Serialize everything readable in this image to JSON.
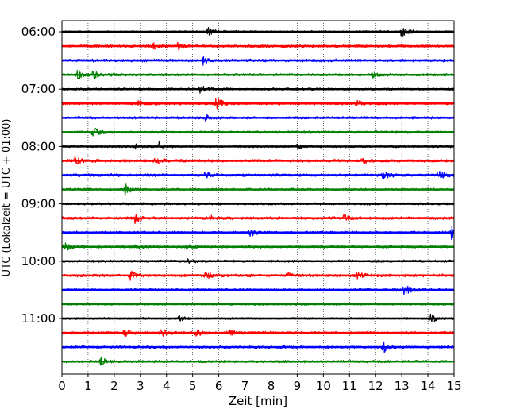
{
  "chart_data": {
    "type": "line",
    "title": "",
    "xlabel": "Zeit  [min]",
    "ylabel": "UTC (Lokalzeit = UTC + 01:00)",
    "xlim": [
      0,
      15
    ],
    "x_ticks": [
      "0",
      "1",
      "2",
      "3",
      "4",
      "5",
      "6",
      "7",
      "8",
      "9",
      "10",
      "11",
      "12",
      "13",
      "14",
      "15"
    ],
    "y_tick_labels": [
      "06:00",
      "07:00",
      "08:00",
      "09:00",
      "10:00",
      "11:00"
    ],
    "y_tick_rows": [
      0,
      4,
      8,
      12,
      16,
      20
    ],
    "grid": "vertical dotted",
    "row_minutes": 15,
    "color_cycle": [
      "#000000",
      "#ff0000",
      "#0000ff",
      "#008000"
    ],
    "series": [
      {
        "name": "06:00",
        "color": "#000000",
        "noise": 0.1,
        "events": [
          [
            5.6,
            0.5
          ],
          [
            13.0,
            0.6
          ]
        ]
      },
      {
        "name": "06:15",
        "color": "#ff0000",
        "noise": 0.12,
        "events": [
          [
            3.5,
            0.3
          ],
          [
            4.4,
            0.45
          ]
        ]
      },
      {
        "name": "06:30",
        "color": "#0000ff",
        "noise": 0.12,
        "events": [
          [
            5.4,
            0.35
          ]
        ]
      },
      {
        "name": "06:45",
        "color": "#008000",
        "noise": 0.11,
        "events": [
          [
            0.6,
            0.55
          ],
          [
            1.2,
            0.5
          ],
          [
            11.9,
            0.35
          ]
        ]
      },
      {
        "name": "07:00",
        "color": "#000000",
        "noise": 0.1,
        "events": [
          [
            5.3,
            0.45
          ]
        ]
      },
      {
        "name": "07:15",
        "color": "#ff0000",
        "noise": 0.12,
        "events": [
          [
            2.9,
            0.35
          ],
          [
            5.9,
            0.65
          ],
          [
            11.3,
            0.3
          ]
        ]
      },
      {
        "name": "07:30",
        "color": "#0000ff",
        "noise": 0.11,
        "events": [
          [
            5.5,
            0.35
          ]
        ]
      },
      {
        "name": "07:45",
        "color": "#008000",
        "noise": 0.11,
        "events": [
          [
            1.2,
            0.55
          ]
        ]
      },
      {
        "name": "08:00",
        "color": "#000000",
        "noise": 0.1,
        "events": [
          [
            2.8,
            0.25
          ],
          [
            3.7,
            0.45
          ],
          [
            9.0,
            0.25
          ]
        ]
      },
      {
        "name": "08:15",
        "color": "#ff0000",
        "noise": 0.12,
        "events": [
          [
            0.5,
            0.45
          ],
          [
            3.6,
            0.4
          ],
          [
            11.5,
            0.2
          ]
        ]
      },
      {
        "name": "08:30",
        "color": "#0000ff",
        "noise": 0.12,
        "events": [
          [
            5.5,
            0.35
          ],
          [
            12.3,
            0.55
          ],
          [
            14.4,
            0.45
          ]
        ]
      },
      {
        "name": "08:45",
        "color": "#008000",
        "noise": 0.11,
        "events": [
          [
            2.4,
            0.65
          ]
        ]
      },
      {
        "name": "09:00",
        "color": "#000000",
        "noise": 0.1,
        "events": [
          [
            15.0,
            0.35
          ]
        ]
      },
      {
        "name": "09:15",
        "color": "#ff0000",
        "noise": 0.12,
        "events": [
          [
            2.8,
            0.6
          ],
          [
            5.7,
            0.25
          ],
          [
            10.8,
            0.35
          ]
        ]
      },
      {
        "name": "09:30",
        "color": "#0000ff",
        "noise": 0.12,
        "events": [
          [
            7.2,
            0.35
          ],
          [
            14.9,
            0.65
          ]
        ]
      },
      {
        "name": "09:45",
        "color": "#008000",
        "noise": 0.11,
        "events": [
          [
            0.1,
            0.45
          ],
          [
            2.8,
            0.3
          ],
          [
            4.8,
            0.25
          ]
        ]
      },
      {
        "name": "10:00",
        "color": "#000000",
        "noise": 0.1,
        "events": [
          [
            4.8,
            0.25
          ]
        ]
      },
      {
        "name": "10:15",
        "color": "#ff0000",
        "noise": 0.12,
        "events": [
          [
            2.6,
            0.55
          ],
          [
            5.5,
            0.45
          ],
          [
            8.6,
            0.3
          ],
          [
            11.3,
            0.3
          ]
        ]
      },
      {
        "name": "10:30",
        "color": "#0000ff",
        "noise": 0.12,
        "events": [
          [
            13.1,
            0.6
          ]
        ]
      },
      {
        "name": "10:45",
        "color": "#008000",
        "noise": 0.1,
        "events": []
      },
      {
        "name": "11:00",
        "color": "#000000",
        "noise": 0.09,
        "events": [
          [
            4.5,
            0.3
          ],
          [
            14.1,
            0.45
          ]
        ]
      },
      {
        "name": "11:15",
        "color": "#ff0000",
        "noise": 0.12,
        "events": [
          [
            2.4,
            0.45
          ],
          [
            3.8,
            0.35
          ],
          [
            5.1,
            0.4
          ],
          [
            6.4,
            0.35
          ]
        ]
      },
      {
        "name": "11:30",
        "color": "#0000ff",
        "noise": 0.11,
        "events": [
          [
            12.3,
            0.55
          ]
        ]
      },
      {
        "name": "11:45",
        "color": "#008000",
        "noise": 0.11,
        "events": [
          [
            1.5,
            0.45
          ]
        ]
      }
    ]
  }
}
